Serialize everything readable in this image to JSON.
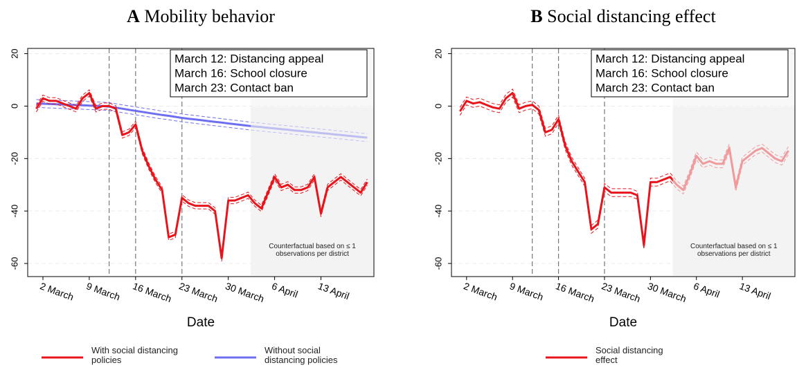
{
  "chart_data": [
    {
      "type": "line",
      "title_letter": "A",
      "title": "Mobility behavior",
      "xlabel": "Date",
      "x": [
        1,
        2,
        3,
        4,
        5,
        6,
        7,
        8,
        9,
        10,
        11,
        12,
        13,
        14,
        15,
        16,
        17,
        18,
        19,
        20,
        21,
        22,
        23,
        24,
        25,
        26,
        27,
        28,
        29,
        30,
        31,
        32,
        33,
        34,
        35,
        36,
        37,
        38,
        39,
        40,
        41,
        42,
        43,
        44,
        45,
        46,
        47,
        48,
        49,
        50,
        51
      ],
      "xlim": [
        -0.3,
        52
      ],
      "ylim": [
        -65,
        22
      ],
      "xticks": [
        {
          "value": 2,
          "label": "2 March"
        },
        {
          "value": 9,
          "label": "9 March"
        },
        {
          "value": 16,
          "label": "16 March"
        },
        {
          "value": 23,
          "label": "23 March"
        },
        {
          "value": 30,
          "label": "30 March"
        },
        {
          "value": 37,
          "label": "6 April"
        },
        {
          "value": 44,
          "label": "13 April"
        }
      ],
      "yticks": [
        20,
        0,
        -20,
        -40,
        -60
      ],
      "grid": true,
      "vlines": [
        12,
        16,
        23
      ],
      "annotation_box": [
        "March 12: Distancing appeal",
        "March 16: School closure",
        "March 23: Contact ban"
      ],
      "shaded_region": {
        "xlim": [
          33.4,
          52
        ],
        "label": "Counterfactual based on ≤ 1 observations per district"
      },
      "series": [
        {
          "name": "Without social distancing policies",
          "color": "#6e6ef0",
          "ci": 1.5,
          "fade_in_shade": true,
          "values": [
            1.0,
            0.9,
            0.8,
            0.7,
            0.6,
            0.5,
            0.4,
            0.3,
            0.2,
            0.1,
            0.0,
            -0.2,
            -0.6,
            -1.0,
            -1.4,
            -1.8,
            -2.2,
            -2.6,
            -3.0,
            -3.4,
            -3.7,
            -4.1,
            -4.5,
            -4.8,
            -5.1,
            -5.4,
            -5.7,
            -6.0,
            -6.3,
            -6.6,
            -6.9,
            -7.2,
            -7.5,
            -7.8,
            -8.0,
            -8.3,
            -8.5,
            -8.8,
            -9.0,
            -9.3,
            -9.5,
            -9.8,
            -10.0,
            -10.3,
            -10.5,
            -10.8,
            -11.0,
            -11.3,
            -11.5,
            -11.8,
            -12.0
          ]
        },
        {
          "name": "With social distancing policies",
          "color": "#e8141b",
          "ci": 1.2,
          "fade_in_shade": false,
          "values": [
            -1,
            3,
            2,
            2,
            1,
            0,
            -1,
            3,
            5,
            -1,
            0,
            0,
            -1,
            -11,
            -10,
            -7,
            -17,
            -23,
            -28,
            -32,
            -50,
            -49,
            -35,
            -37,
            -38,
            -38,
            -38,
            -40,
            -58,
            -36,
            -36,
            -35,
            -34,
            -37,
            -39,
            -33,
            -27,
            -31,
            -30,
            -32,
            -32,
            -31,
            -27,
            -41,
            -31,
            -29,
            -27,
            -29,
            -31,
            -33,
            -29
          ]
        }
      ]
    },
    {
      "type": "line",
      "title_letter": "B",
      "title": "Social distancing effect",
      "xlabel": "Date",
      "x": [
        1,
        2,
        3,
        4,
        5,
        6,
        7,
        8,
        9,
        10,
        11,
        12,
        13,
        14,
        15,
        16,
        17,
        18,
        19,
        20,
        21,
        22,
        23,
        24,
        25,
        26,
        27,
        28,
        29,
        30,
        31,
        32,
        33,
        34,
        35,
        36,
        37,
        38,
        39,
        40,
        41,
        42,
        43,
        44,
        45,
        46,
        47,
        48,
        49,
        50,
        51
      ],
      "xlim": [
        -0.3,
        52
      ],
      "ylim": [
        -65,
        22
      ],
      "xticks": [
        {
          "value": 2,
          "label": "2 March"
        },
        {
          "value": 9,
          "label": "9 March"
        },
        {
          "value": 16,
          "label": "16 March"
        },
        {
          "value": 23,
          "label": "23 March"
        },
        {
          "value": 30,
          "label": "30 March"
        },
        {
          "value": 37,
          "label": "6 April"
        },
        {
          "value": 44,
          "label": "13 April"
        }
      ],
      "yticks": [
        20,
        0,
        -20,
        -40,
        -60
      ],
      "grid": true,
      "vlines": [
        12,
        16,
        23
      ],
      "annotation_box": [
        "March 12: Distancing appeal",
        "March 16: School closure",
        "March 23: Contact ban"
      ],
      "shaded_region": {
        "xlim": [
          33.4,
          52
        ],
        "label": "Counterfactual based on ≤ 1 observations per district"
      },
      "series": [
        {
          "name": "Social distancing effect",
          "color": "#e8141b",
          "ci": 1.5,
          "fade_in_shade": true,
          "values": [
            -2,
            2,
            1,
            1.5,
            0.5,
            -0.5,
            -1,
            3,
            5,
            -1,
            0,
            0.5,
            -1.5,
            -10,
            -9,
            -5,
            -15,
            -21,
            -25,
            -29,
            -47,
            -45,
            -31,
            -33,
            -33,
            -33,
            -33,
            -34,
            -53,
            -29,
            -29,
            -28,
            -27,
            -30,
            -32,
            -26,
            -19,
            -22,
            -21,
            -22,
            -22,
            -16,
            -31,
            -21,
            -19,
            -17,
            -16,
            -18,
            -20,
            -21,
            -17
          ]
        }
      ]
    }
  ]
}
